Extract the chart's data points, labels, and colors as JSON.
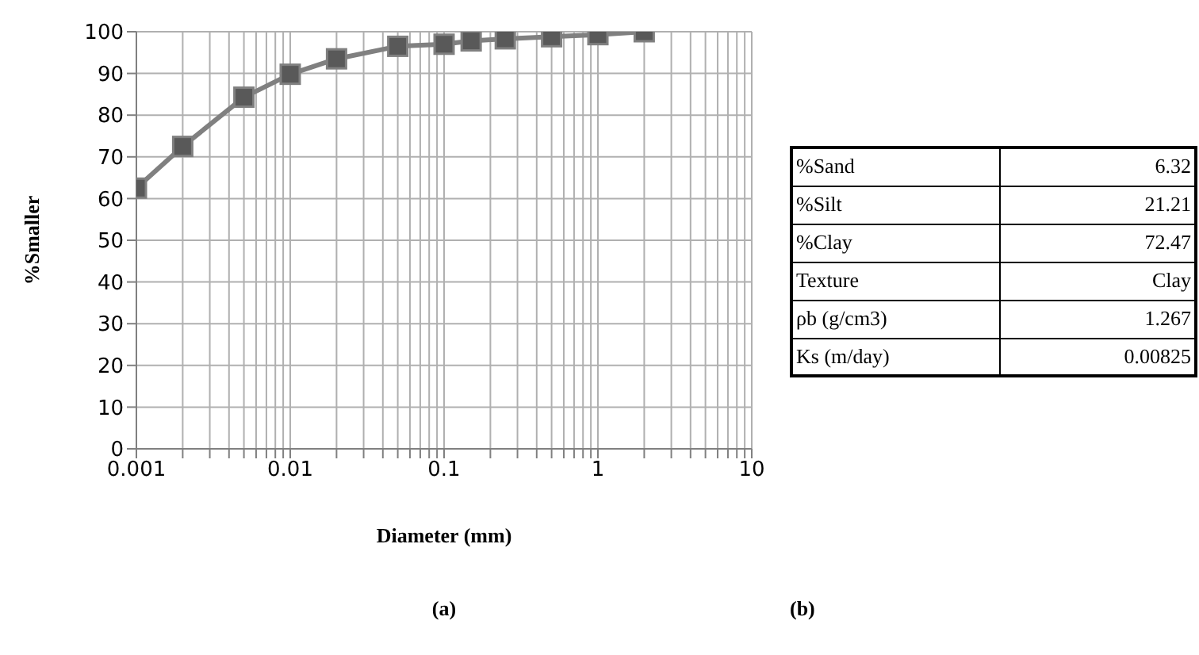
{
  "chart_data": [
    {
      "type": "line",
      "xlabel": "Diameter (mm)",
      "ylabel": "%Smaller",
      "annotations": [
        "(a)"
      ],
      "x": [
        0.001,
        0.002,
        0.005,
        0.01,
        0.02,
        0.05,
        0.1,
        0.15,
        0.25,
        0.5,
        1,
        2
      ],
      "series": [
        {
          "color": "#808080",
          "values": [
            62.5,
            72.5,
            84.3,
            89.8,
            93.5,
            96.5,
            97,
            97.8,
            98.3,
            98.8,
            99.3,
            100
          ]
        }
      ],
      "log": "x",
      "xlim": [
        0.001,
        10
      ],
      "xticks": [
        0.001,
        {
          "value": 0.002,
          "label": null
        },
        {
          "value": 0.003,
          "label": null
        },
        {
          "value": 0.004,
          "label": null
        },
        {
          "value": 0.005,
          "label": null
        },
        {
          "value": 0.006,
          "label": null
        },
        {
          "value": 0.007,
          "label": null
        },
        {
          "value": 0.008,
          "label": null
        },
        {
          "value": 0.009,
          "label": null
        },
        0.01,
        {
          "value": 0.02,
          "label": null
        },
        {
          "value": 0.03,
          "label": null
        },
        {
          "value": 0.04,
          "label": null
        },
        {
          "value": 0.05,
          "label": null
        },
        {
          "value": 0.06,
          "label": null
        },
        {
          "value": 0.07,
          "label": null
        },
        {
          "value": 0.08,
          "label": null
        },
        {
          "value": 0.09,
          "label": null
        },
        0.1,
        {
          "value": 0.2,
          "label": null
        },
        {
          "value": 0.3,
          "label": null
        },
        {
          "value": 0.4,
          "label": null
        },
        {
          "value": 0.5,
          "label": null
        },
        {
          "value": 0.6,
          "label": null
        },
        {
          "value": 0.7,
          "label": null
        },
        {
          "value": 0.8,
          "label": null
        },
        {
          "value": 0.9,
          "label": null
        },
        1,
        {
          "value": 2,
          "label": null
        },
        {
          "value": 3,
          "label": null
        },
        {
          "value": 4,
          "label": null
        },
        {
          "value": 5,
          "label": null
        },
        {
          "value": 6,
          "label": null
        },
        {
          "value": 7,
          "label": null
        },
        {
          "value": 8,
          "label": null
        },
        {
          "value": 9,
          "label": null
        },
        10
      ],
      "ylim": [
        0,
        100
      ],
      "yticks": [
        0,
        10,
        20,
        30,
        40,
        50,
        60,
        70,
        80,
        90,
        100
      ],
      "grid": true,
      "marker": "square",
      "line_style": "solid",
      "legend": false
    },
    {
      "type": "other",
      "annotations": [
        "%Sand",
        "6.32",
        "%Silt",
        "21.21",
        "%Clay",
        "72.47",
        "Texture",
        "Clay",
        "ρb (g/cm3)",
        "1.267",
        "Ks (m/day)",
        "0.00825",
        "(b)"
      ]
    }
  ]
}
